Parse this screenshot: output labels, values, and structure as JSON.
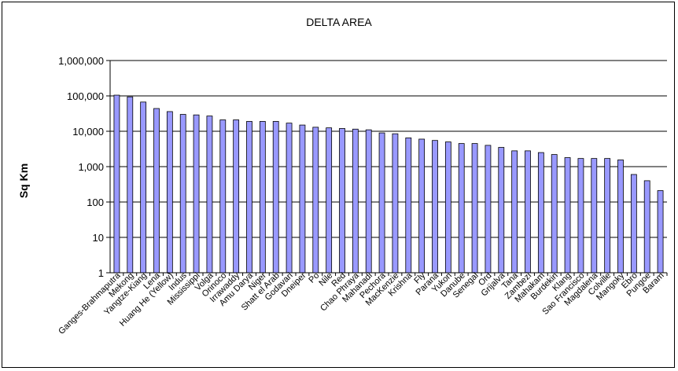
{
  "chart_data": {
    "type": "bar",
    "title": "DELTA AREA",
    "xlabel": "",
    "ylabel": "Sq Km",
    "yscale": "log",
    "ylim": [
      1,
      1000000
    ],
    "ytick_labels": [
      "1",
      "10",
      "100",
      "1,000",
      "10,000",
      "100,000",
      "1,000,000"
    ],
    "grid": "horizontal",
    "legend": "none",
    "bar_color": "#9999ff",
    "categories": [
      "Ganges-Brahmaputra",
      "Mekong",
      "Yangtze-Kiang",
      "Lena",
      "Huang He (Yellow)",
      "Indus",
      "Mississippi",
      "Volga",
      "Orinoco",
      "Irrawaddy",
      "Amu Darya",
      "Niger",
      "Shatt el Arab",
      "Godavari",
      "Dneiper",
      "Po",
      "Nile",
      "Red",
      "Chao Phraya",
      "Mahanadi",
      "Pechora",
      "MacKenzie",
      "Krishna",
      "Fly",
      "Parana",
      "Yukon",
      "Danube",
      "Senegal",
      "Ord",
      "Grijalva",
      "Tana",
      "Zambezi",
      "Mahakam",
      "Burdekin",
      "Klang",
      "Sao Francisco",
      "Magdalena",
      "Colville",
      "Mangoky",
      "Ebro",
      "Pungoe",
      "Baram"
    ],
    "values": [
      105000,
      94000,
      67000,
      44000,
      36000,
      30000,
      29000,
      27000,
      21000,
      21000,
      19000,
      19000,
      19000,
      17000,
      15000,
      13000,
      12500,
      12000,
      11500,
      11000,
      9000,
      8500,
      6500,
      6000,
      5500,
      5000,
      4500,
      4500,
      4000,
      3500,
      2800,
      2800,
      2500,
      2200,
      1800,
      1700,
      1700,
      1700,
      1550,
      600,
      400,
      210
    ]
  }
}
